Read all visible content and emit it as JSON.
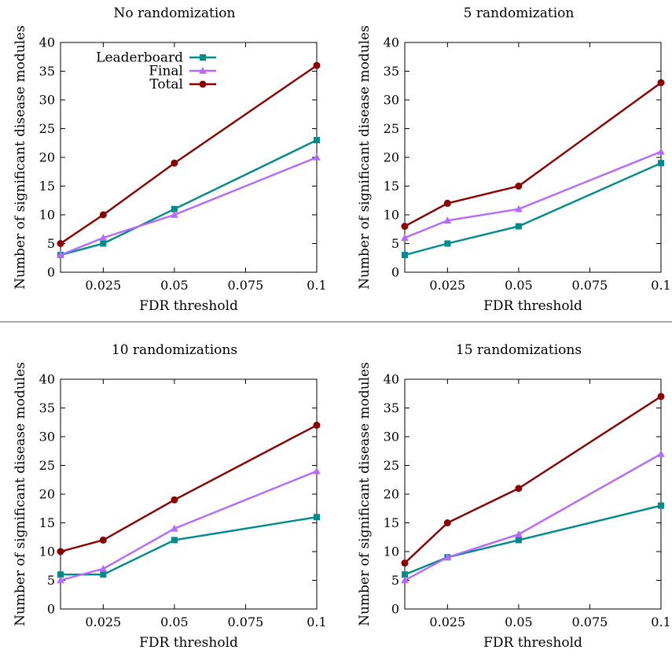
{
  "chart_data": [
    {
      "type": "line",
      "title": "No randomization",
      "xlabel": "FDR threshold",
      "ylabel": "Number of significant disease modules",
      "x": [
        0.01,
        0.025,
        0.05,
        0.1
      ],
      "xlim": [
        0.01,
        0.1
      ],
      "xticks": [
        0.025,
        0.05,
        0.075,
        0.1
      ],
      "xtick_labels": [
        "0.025",
        "0.05",
        "0.075",
        "0.1"
      ],
      "ylim": [
        0,
        40
      ],
      "yticks": [
        0,
        5,
        10,
        15,
        20,
        25,
        30,
        35,
        40
      ],
      "ytick_labels": [
        "0",
        "5",
        "10",
        "15",
        "20",
        "25",
        "30",
        "35",
        "40"
      ],
      "grid": false,
      "legend": "top-left",
      "series": [
        {
          "name": "Leaderboard",
          "values": [
            3,
            5,
            11,
            23
          ],
          "color": "#008b8b",
          "marker": "square"
        },
        {
          "name": "Final",
          "values": [
            3,
            6,
            10,
            20
          ],
          "color": "#b469ff",
          "marker": "triangle"
        },
        {
          "name": "Total",
          "values": [
            5,
            10,
            19,
            36
          ],
          "color": "#8b0000",
          "marker": "circle"
        }
      ]
    },
    {
      "type": "line",
      "title": "5 randomization",
      "xlabel": "FDR threshold",
      "ylabel": "Number of significant disease modules",
      "x": [
        0.01,
        0.025,
        0.05,
        0.1
      ],
      "xlim": [
        0.01,
        0.1
      ],
      "xticks": [
        0.025,
        0.05,
        0.075,
        0.1
      ],
      "xtick_labels": [
        "0.025",
        "0.05",
        "0.075",
        "0.1"
      ],
      "ylim": [
        0,
        40
      ],
      "yticks": [
        0,
        5,
        10,
        15,
        20,
        25,
        30,
        35,
        40
      ],
      "ytick_labels": [
        "0",
        "5",
        "10",
        "15",
        "20",
        "25",
        "30",
        "35",
        "40"
      ],
      "grid": false,
      "series": [
        {
          "name": "Leaderboard",
          "values": [
            3,
            5,
            8,
            19
          ],
          "color": "#008b8b",
          "marker": "square"
        },
        {
          "name": "Final",
          "values": [
            6,
            9,
            11,
            21
          ],
          "color": "#b469ff",
          "marker": "triangle"
        },
        {
          "name": "Total",
          "values": [
            8,
            12,
            15,
            33
          ],
          "color": "#8b0000",
          "marker": "circle"
        }
      ]
    },
    {
      "type": "line",
      "title": "10 randomizations",
      "xlabel": "FDR threshold",
      "ylabel": "Number of significant disease modules",
      "x": [
        0.01,
        0.025,
        0.05,
        0.1
      ],
      "xlim": [
        0.01,
        0.1
      ],
      "xticks": [
        0.025,
        0.05,
        0.075,
        0.1
      ],
      "xtick_labels": [
        "0.025",
        "0.05",
        "0.075",
        "0.1"
      ],
      "ylim": [
        0,
        40
      ],
      "yticks": [
        0,
        5,
        10,
        15,
        20,
        25,
        30,
        35,
        40
      ],
      "ytick_labels": [
        "0",
        "5",
        "10",
        "15",
        "20",
        "25",
        "30",
        "35",
        "40"
      ],
      "grid": false,
      "series": [
        {
          "name": "Leaderboard",
          "values": [
            6,
            6,
            12,
            16
          ],
          "color": "#008b8b",
          "marker": "square"
        },
        {
          "name": "Final",
          "values": [
            5,
            7,
            14,
            24
          ],
          "color": "#b469ff",
          "marker": "triangle"
        },
        {
          "name": "Total",
          "values": [
            10,
            12,
            19,
            32
          ],
          "color": "#8b0000",
          "marker": "circle"
        }
      ]
    },
    {
      "type": "line",
      "title": "15 randomizations",
      "xlabel": "FDR threshold",
      "ylabel": "Number of significant disease modules",
      "x": [
        0.01,
        0.025,
        0.05,
        0.1
      ],
      "xlim": [
        0.01,
        0.1
      ],
      "xticks": [
        0.025,
        0.05,
        0.075,
        0.1
      ],
      "xtick_labels": [
        "0.025",
        "0.05",
        "0.075",
        "0.1"
      ],
      "ylim": [
        0,
        40
      ],
      "yticks": [
        0,
        5,
        10,
        15,
        20,
        25,
        30,
        35,
        40
      ],
      "ytick_labels": [
        "0",
        "5",
        "10",
        "15",
        "20",
        "25",
        "30",
        "35",
        "40"
      ],
      "grid": false,
      "series": [
        {
          "name": "Leaderboard",
          "values": [
            6,
            9,
            12,
            18
          ],
          "color": "#008b8b",
          "marker": "square"
        },
        {
          "name": "Final",
          "values": [
            5,
            9,
            13,
            27
          ],
          "color": "#b469ff",
          "marker": "triangle"
        },
        {
          "name": "Total",
          "values": [
            8,
            15,
            21,
            37
          ],
          "color": "#8b0000",
          "marker": "circle"
        }
      ]
    }
  ]
}
